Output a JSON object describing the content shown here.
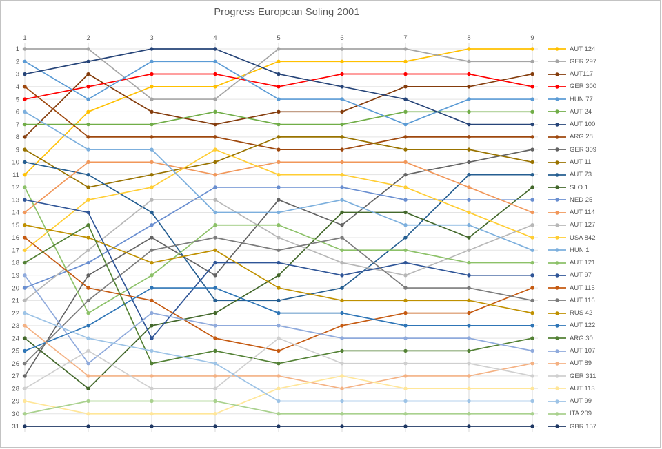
{
  "title": "Progress European Soling 2001",
  "axes": {
    "x_ticks": [
      "1",
      "2",
      "3",
      "4",
      "5",
      "6",
      "7",
      "8",
      "9"
    ],
    "y_ticks": [
      "1",
      "2",
      "3",
      "4",
      "5",
      "6",
      "7",
      "8",
      "9",
      "10",
      "11",
      "12",
      "13",
      "14",
      "15",
      "16",
      "17",
      "18",
      "19",
      "20",
      "21",
      "22",
      "23",
      "24",
      "25",
      "26",
      "27",
      "28",
      "29",
      "30",
      "31"
    ]
  },
  "style": {
    "background": "#FFFFFF",
    "frame_border": "#C3C3C3",
    "grid_color_h": "#E3E3E3",
    "grid_color_v": "#D9D9D9",
    "axis_text_color": "#595959",
    "title_color": "#595959"
  },
  "chart_data": {
    "type": "line",
    "title": "Progress European Soling 2001",
    "xlabel": "",
    "ylabel": "",
    "x": [
      1,
      2,
      3,
      4,
      5,
      6,
      7,
      8,
      9
    ],
    "x_range": [
      1,
      9
    ],
    "y_range": [
      1,
      31
    ],
    "y_reversed": true,
    "grid": true,
    "legend_position": "right",
    "series": [
      {
        "name": "AUT 124",
        "color": "#FFC000",
        "ranks": [
          11,
          6,
          4,
          4,
          2,
          2,
          2,
          1,
          1
        ]
      },
      {
        "name": "GER 297",
        "color": "#A5A5A5",
        "ranks": [
          1,
          1,
          5,
          5,
          1,
          1,
          1,
          2,
          2
        ]
      },
      {
        "name": "AUT117",
        "color": "#843C0C",
        "ranks": [
          8,
          3,
          6,
          7,
          6,
          6,
          4,
          4,
          3
        ]
      },
      {
        "name": "GER 300",
        "color": "#FF0000",
        "ranks": [
          5,
          4,
          3,
          3,
          4,
          3,
          3,
          3,
          4
        ]
      },
      {
        "name": "HUN 77",
        "color": "#5B9BD5",
        "ranks": [
          2,
          5,
          2,
          2,
          5,
          5,
          7,
          5,
          5
        ]
      },
      {
        "name": "AUT 24",
        "color": "#70AD47",
        "ranks": [
          7,
          7,
          7,
          6,
          7,
          7,
          6,
          6,
          6
        ]
      },
      {
        "name": "AUT 100",
        "color": "#264478",
        "ranks": [
          3,
          2,
          1,
          1,
          3,
          4,
          5,
          7,
          7
        ]
      },
      {
        "name": "ARG 28",
        "color": "#9E480E",
        "ranks": [
          4,
          8,
          8,
          8,
          9,
          9,
          8,
          8,
          8
        ]
      },
      {
        "name": "GER 309",
        "color": "#636363",
        "ranks": [
          27,
          19,
          16,
          19,
          13,
          15,
          11,
          10,
          9
        ]
      },
      {
        "name": "AUT 11",
        "color": "#997300",
        "ranks": [
          9,
          12,
          11,
          10,
          8,
          8,
          9,
          9,
          10
        ]
      },
      {
        "name": "AUT 73",
        "color": "#255E91",
        "ranks": [
          10,
          11,
          14,
          21,
          21,
          20,
          16,
          11,
          11
        ]
      },
      {
        "name": "SLO 1",
        "color": "#43682B",
        "ranks": [
          24,
          28,
          23,
          22,
          19,
          14,
          14,
          16,
          12
        ]
      },
      {
        "name": "NED 25",
        "color": "#698ED0",
        "ranks": [
          20,
          18,
          15,
          12,
          12,
          12,
          13,
          13,
          13
        ]
      },
      {
        "name": "AUT 114",
        "color": "#F1975A",
        "ranks": [
          14,
          10,
          10,
          11,
          10,
          10,
          10,
          12,
          14
        ]
      },
      {
        "name": "AUT 127",
        "color": "#B7B7B7",
        "ranks": [
          21,
          17,
          13,
          13,
          16,
          18,
          19,
          17,
          15
        ]
      },
      {
        "name": "USA 842",
        "color": "#FFCD33",
        "ranks": [
          17,
          13,
          12,
          9,
          11,
          11,
          12,
          14,
          16
        ]
      },
      {
        "name": "HUN 1",
        "color": "#7CAFDD",
        "ranks": [
          6,
          9,
          9,
          14,
          14,
          13,
          15,
          15,
          17
        ]
      },
      {
        "name": "AUT 121",
        "color": "#8CC168",
        "ranks": [
          12,
          22,
          19,
          15,
          15,
          17,
          17,
          18,
          18
        ]
      },
      {
        "name": "AUT 97",
        "color": "#2F5597",
        "ranks": [
          13,
          14,
          24,
          18,
          18,
          19,
          18,
          19,
          19
        ]
      },
      {
        "name": "AUT 115",
        "color": "#C55A11",
        "ranks": [
          16,
          20,
          21,
          24,
          25,
          23,
          22,
          22,
          20
        ]
      },
      {
        "name": "AUT 116",
        "color": "#7B7B7B",
        "ranks": [
          26,
          21,
          17,
          16,
          17,
          16,
          20,
          20,
          21
        ]
      },
      {
        "name": "RUS 42",
        "color": "#BF9000",
        "ranks": [
          15,
          16,
          18,
          17,
          20,
          21,
          21,
          21,
          22
        ]
      },
      {
        "name": "AUT 122",
        "color": "#2E75B6",
        "ranks": [
          25,
          23,
          20,
          20,
          22,
          22,
          23,
          23,
          23
        ]
      },
      {
        "name": "ARG 30",
        "color": "#538135",
        "ranks": [
          18,
          15,
          26,
          25,
          26,
          25,
          25,
          25,
          24
        ]
      },
      {
        "name": "AUT 107",
        "color": "#8FAADC",
        "ranks": [
          19,
          26,
          22,
          23,
          23,
          24,
          24,
          24,
          25
        ]
      },
      {
        "name": "AUT 89",
        "color": "#F4B183",
        "ranks": [
          23,
          27,
          27,
          27,
          27,
          28,
          27,
          27,
          26
        ]
      },
      {
        "name": "GER 311",
        "color": "#CFCFCF",
        "ranks": [
          28,
          25,
          28,
          28,
          24,
          26,
          26,
          26,
          27
        ]
      },
      {
        "name": "AUT 113",
        "color": "#FFE699",
        "ranks": [
          29,
          30,
          30,
          30,
          28,
          27,
          28,
          28,
          28
        ]
      },
      {
        "name": "AUT 99",
        "color": "#9DC3E6",
        "ranks": [
          22,
          24,
          25,
          26,
          29,
          29,
          29,
          29,
          29
        ]
      },
      {
        "name": "ITA 209",
        "color": "#A9D18E",
        "ranks": [
          30,
          29,
          29,
          29,
          30,
          30,
          30,
          30,
          30
        ]
      },
      {
        "name": "GBR 157",
        "color": "#1F3864",
        "ranks": [
          31,
          31,
          31,
          31,
          31,
          31,
          31,
          31,
          31
        ]
      }
    ]
  }
}
